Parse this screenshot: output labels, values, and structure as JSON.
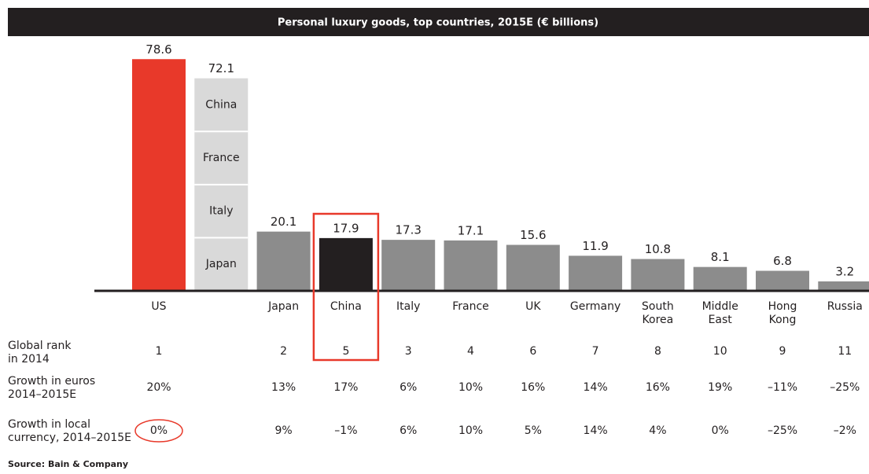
{
  "chart_data": {
    "type": "bar",
    "title": "Personal luxury goods, top countries, 2015E (€ billions)",
    "categories": [
      "US",
      null,
      "Japan",
      "China",
      "Italy",
      "France",
      "UK",
      "Germany",
      "South Korea",
      "Middle East",
      "Hong Kong",
      "Russia"
    ],
    "values": [
      78.6,
      72.1,
      20.1,
      17.9,
      17.3,
      17.1,
      15.6,
      11.9,
      10.8,
      8.1,
      6.8,
      3.2
    ],
    "colors": [
      "#e8392a",
      "#d9d9d9",
      "#8c8c8c",
      "#231f20",
      "#8c8c8c",
      "#8c8c8c",
      "#8c8c8c",
      "#8c8c8c",
      "#8c8c8c",
      "#8c8c8c",
      "#8c8c8c",
      "#8c8c8c"
    ],
    "stack_labels": [
      "China",
      "France",
      "Italy",
      "Japan"
    ],
    "ylim": [
      0,
      80
    ],
    "table": [
      {
        "label": [
          "Global rank",
          "in 2014"
        ],
        "values": [
          "1",
          null,
          "2",
          "5",
          "3",
          "4",
          "6",
          "7",
          "8",
          "10",
          "9",
          "11"
        ]
      },
      {
        "label": [
          "Growth in euros",
          "2014–2015E"
        ],
        "values": [
          "20%",
          null,
          "13%",
          "17%",
          "6%",
          "10%",
          "16%",
          "14%",
          "16%",
          "19%",
          "–11%",
          "–25%"
        ]
      },
      {
        "label": [
          "Growth in local",
          "currency, 2014–2015E"
        ],
        "values": [
          "0%",
          null,
          "9%",
          "–1%",
          "6%",
          "10%",
          "5%",
          "14%",
          "4%",
          "0%",
          "–25%",
          "–2%"
        ]
      }
    ],
    "source": "Source: Bain & Company"
  }
}
